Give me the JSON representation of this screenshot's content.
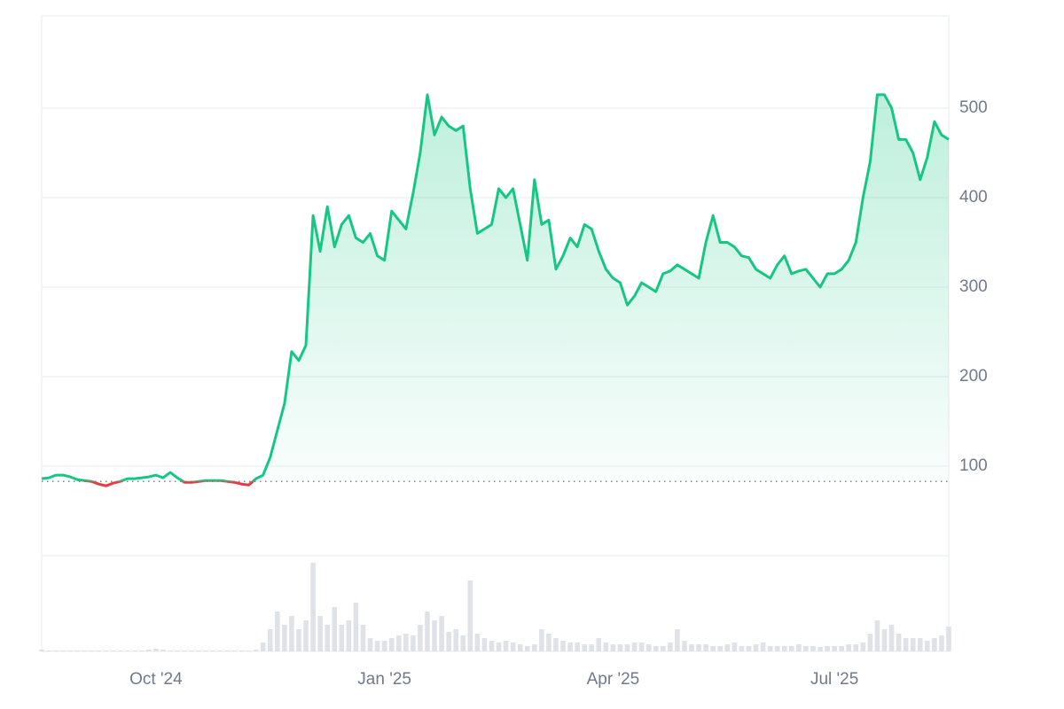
{
  "chart_data": {
    "type": "line",
    "categories": [
      null,
      null,
      null,
      null,
      null,
      null,
      null,
      null,
      null,
      null,
      null,
      null,
      null,
      null,
      null,
      null,
      "Oct '24",
      null,
      null,
      null,
      null,
      null,
      null,
      null,
      null,
      null,
      null,
      null,
      null,
      null,
      null,
      null,
      null,
      null,
      null,
      null,
      null,
      null,
      null,
      null,
      null,
      null,
      null,
      null,
      null,
      null,
      null,
      null,
      "Jan '25",
      null,
      null,
      null,
      null,
      null,
      null,
      null,
      null,
      null,
      null,
      null,
      null,
      null,
      null,
      null,
      null,
      null,
      null,
      null,
      null,
      null,
      null,
      null,
      null,
      null,
      null,
      null,
      null,
      null,
      null,
      null,
      "Apr '25",
      null,
      null,
      null,
      null,
      null,
      null,
      null,
      null,
      null,
      null,
      null,
      null,
      null,
      null,
      null,
      null,
      null,
      null,
      null,
      null,
      null,
      null,
      null,
      null,
      null,
      null,
      null,
      null,
      null,
      null,
      "Jul '25",
      null,
      null,
      null,
      null,
      null,
      null,
      null,
      null,
      null,
      null,
      null,
      null,
      null,
      null,
      null,
      null
    ],
    "values": [
      86,
      87,
      90,
      90,
      88,
      85,
      84,
      83,
      80,
      78,
      81,
      83,
      86,
      86,
      87,
      88,
      90,
      87,
      93,
      87,
      82,
      82,
      83,
      84,
      84,
      84,
      83,
      82,
      80,
      79,
      86,
      90,
      110,
      140,
      170,
      228,
      218,
      235,
      380,
      340,
      390,
      345,
      370,
      380,
      355,
      350,
      360,
      335,
      330,
      385,
      375,
      365,
      405,
      450,
      515,
      470,
      490,
      480,
      475,
      480,
      410,
      360,
      365,
      370,
      410,
      400,
      410,
      370,
      330,
      420,
      370,
      375,
      320,
      335,
      355,
      345,
      370,
      365,
      340,
      320,
      310,
      305,
      280,
      290,
      305,
      300,
      295,
      315,
      318,
      325,
      320,
      315,
      310,
      350,
      380,
      350,
      350,
      345,
      335,
      333,
      320,
      315,
      310,
      325,
      335,
      315,
      318,
      320,
      310,
      300,
      315,
      315,
      320,
      330,
      350,
      400,
      440,
      515,
      515,
      500,
      465,
      465,
      450,
      420,
      445,
      485,
      470,
      465
    ],
    "volume": [
      2,
      1,
      1,
      1,
      1,
      1,
      1,
      1,
      1,
      1,
      1,
      1,
      1,
      1,
      1,
      2,
      3,
      2,
      1,
      1,
      1,
      1,
      1,
      1,
      1,
      1,
      1,
      1,
      1,
      1,
      2,
      10,
      25,
      45,
      30,
      40,
      25,
      35,
      100,
      40,
      30,
      50,
      30,
      35,
      55,
      30,
      15,
      12,
      12,
      15,
      18,
      20,
      18,
      30,
      45,
      35,
      40,
      22,
      25,
      18,
      80,
      20,
      15,
      12,
      10,
      12,
      10,
      8,
      6,
      8,
      25,
      20,
      15,
      12,
      10,
      10,
      8,
      8,
      15,
      10,
      8,
      8,
      8,
      10,
      10,
      8,
      6,
      6,
      10,
      25,
      12,
      8,
      8,
      8,
      6,
      6,
      8,
      10,
      6,
      6,
      8,
      10,
      6,
      6,
      6,
      6,
      8,
      6,
      6,
      5,
      6,
      6,
      6,
      8,
      8,
      10,
      20,
      35,
      25,
      30,
      20,
      15,
      15,
      15,
      12,
      15,
      18,
      28
    ],
    "baseline": 83,
    "color": "#16c784",
    "below_color": "#ea3943",
    "volume_color": "#dfe3e8",
    "ylim": [
      0,
      603
    ],
    "yticks": [
      100,
      200,
      300,
      400,
      500
    ],
    "grid": true
  }
}
